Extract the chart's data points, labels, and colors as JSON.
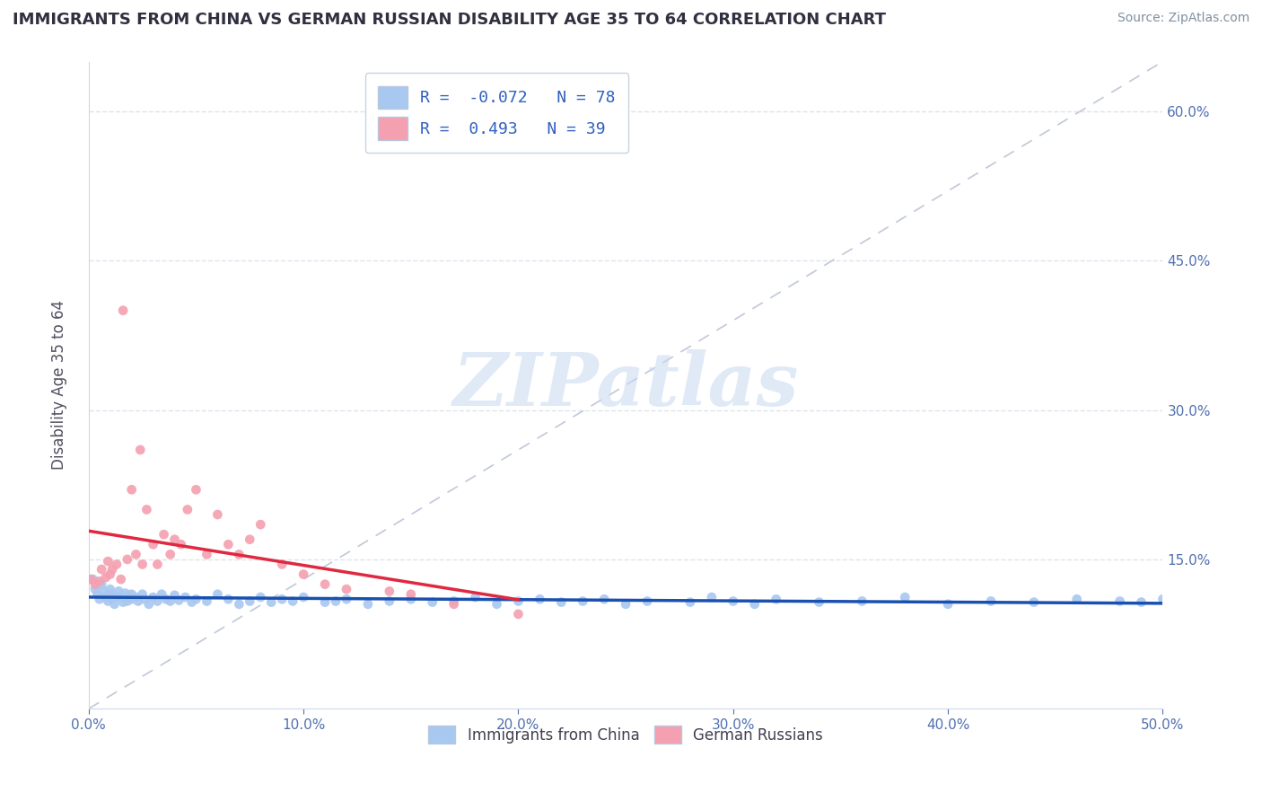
{
  "title": "IMMIGRANTS FROM CHINA VS GERMAN RUSSIAN DISABILITY AGE 35 TO 64 CORRELATION CHART",
  "source": "Source: ZipAtlas.com",
  "ylabel_label": "Disability Age 35 to 64",
  "legend_labels": [
    "Immigrants from China",
    "German Russians"
  ],
  "R_china": -0.072,
  "N_china": 78,
  "R_german": 0.493,
  "N_german": 39,
  "china_color": "#a8c8f0",
  "german_color": "#f4a0b0",
  "china_line_color": "#1a50b0",
  "german_line_color": "#e02840",
  "china_scatter_x": [
    0.002,
    0.003,
    0.004,
    0.005,
    0.006,
    0.007,
    0.008,
    0.009,
    0.01,
    0.01,
    0.011,
    0.012,
    0.013,
    0.014,
    0.015,
    0.016,
    0.017,
    0.018,
    0.019,
    0.02,
    0.02,
    0.022,
    0.023,
    0.025,
    0.026,
    0.028,
    0.03,
    0.032,
    0.034,
    0.036,
    0.038,
    0.04,
    0.042,
    0.045,
    0.048,
    0.05,
    0.055,
    0.06,
    0.065,
    0.07,
    0.075,
    0.08,
    0.085,
    0.09,
    0.095,
    0.1,
    0.11,
    0.115,
    0.12,
    0.13,
    0.14,
    0.15,
    0.16,
    0.17,
    0.18,
    0.19,
    0.2,
    0.21,
    0.22,
    0.23,
    0.24,
    0.25,
    0.26,
    0.28,
    0.29,
    0.3,
    0.31,
    0.32,
    0.34,
    0.36,
    0.38,
    0.4,
    0.42,
    0.44,
    0.46,
    0.48,
    0.49,
    0.5
  ],
  "china_scatter_y": [
    0.13,
    0.12,
    0.115,
    0.11,
    0.125,
    0.118,
    0.112,
    0.108,
    0.115,
    0.12,
    0.11,
    0.105,
    0.113,
    0.118,
    0.112,
    0.107,
    0.116,
    0.108,
    0.114,
    0.11,
    0.115,
    0.112,
    0.108,
    0.115,
    0.11,
    0.105,
    0.112,
    0.108,
    0.115,
    0.11,
    0.108,
    0.114,
    0.109,
    0.112,
    0.107,
    0.11,
    0.108,
    0.115,
    0.11,
    0.105,
    0.108,
    0.112,
    0.107,
    0.11,
    0.108,
    0.112,
    0.107,
    0.108,
    0.11,
    0.105,
    0.108,
    0.11,
    0.107,
    0.108,
    0.112,
    0.105,
    0.108,
    0.11,
    0.107,
    0.108,
    0.11,
    0.105,
    0.108,
    0.107,
    0.112,
    0.108,
    0.105,
    0.11,
    0.107,
    0.108,
    0.112,
    0.105,
    0.108,
    0.107,
    0.11,
    0.108,
    0.107,
    0.11
  ],
  "german_scatter_x": [
    0.001,
    0.003,
    0.005,
    0.006,
    0.008,
    0.009,
    0.01,
    0.011,
    0.013,
    0.015,
    0.016,
    0.018,
    0.02,
    0.022,
    0.024,
    0.025,
    0.027,
    0.03,
    0.032,
    0.035,
    0.038,
    0.04,
    0.043,
    0.046,
    0.05,
    0.055,
    0.06,
    0.065,
    0.07,
    0.075,
    0.08,
    0.09,
    0.1,
    0.11,
    0.12,
    0.14,
    0.15,
    0.17,
    0.2
  ],
  "german_scatter_y": [
    0.13,
    0.125,
    0.128,
    0.14,
    0.132,
    0.148,
    0.135,
    0.14,
    0.145,
    0.13,
    0.4,
    0.15,
    0.22,
    0.155,
    0.26,
    0.145,
    0.2,
    0.165,
    0.145,
    0.175,
    0.155,
    0.17,
    0.165,
    0.2,
    0.22,
    0.155,
    0.195,
    0.165,
    0.155,
    0.17,
    0.185,
    0.145,
    0.135,
    0.125,
    0.12,
    0.118,
    0.115,
    0.105,
    0.095
  ],
  "xlim": [
    0.0,
    0.5
  ],
  "ylim": [
    0.0,
    0.65
  ],
  "ytick_positions": [
    0.15,
    0.3,
    0.45,
    0.6
  ],
  "ytick_labels": [
    "15.0%",
    "30.0%",
    "45.0%",
    "60.0%"
  ],
  "xtick_positions": [
    0.0,
    0.1,
    0.2,
    0.3,
    0.4,
    0.5
  ],
  "xtick_labels": [
    "0.0%",
    "10.0%",
    "20.0%",
    "30.0%",
    "40.0%",
    "50.0%"
  ],
  "watermark": "ZIPatlas",
  "watermark_color": "#c8d8f0",
  "background_color": "#ffffff",
  "grid_color": "#dde4ee",
  "diag_line_color": "#c0c8d8",
  "tick_color": "#5070b0"
}
